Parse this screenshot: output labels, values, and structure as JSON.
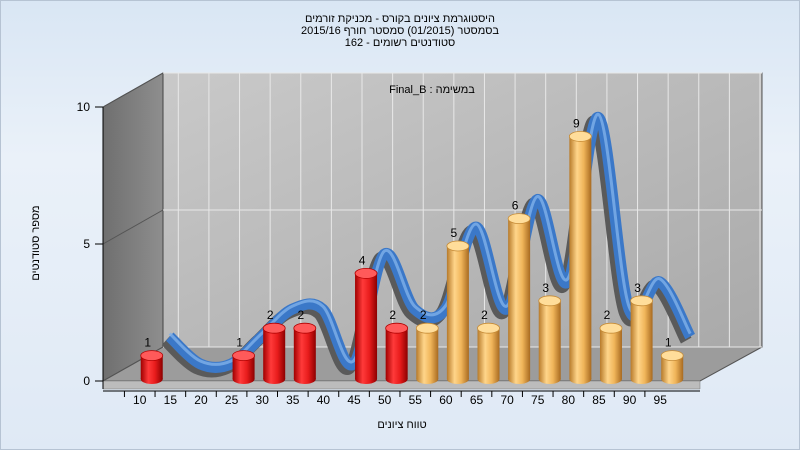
{
  "title": {
    "line1": "היסטוגרמת ציונים בקורס - מכניקת זורמים",
    "line2": "בסמסטר  (01/2015)  סמסטר חורף  2015/16",
    "line3": "162 - סטודנטים רשומים"
  },
  "chart_data": {
    "type": "bar",
    "subtitle": "Final_B : במשימה",
    "xlabel": "טווח ציונים",
    "ylabel": "מספר סטודנטים",
    "ylim": [
      0,
      10
    ],
    "y_ticks": [
      "0",
      "5",
      "10"
    ],
    "categories": [
      "10",
      "15",
      "20",
      "25",
      "30",
      "35",
      "40",
      "45",
      "50",
      "55",
      "60",
      "65",
      "70",
      "75",
      "80",
      "85",
      "90",
      "95"
    ],
    "values": [
      1,
      0,
      0,
      1,
      2,
      2,
      0,
      4,
      2,
      2,
      5,
      2,
      6,
      3,
      9,
      2,
      3,
      1
    ],
    "bar_colors": [
      "red",
      "red",
      "red",
      "red",
      "red",
      "red",
      "red",
      "red",
      "red",
      "orange",
      "orange",
      "orange",
      "orange",
      "orange",
      "orange",
      "orange",
      "orange",
      "orange"
    ],
    "curve_color": "#3b78c8",
    "grid": true
  }
}
